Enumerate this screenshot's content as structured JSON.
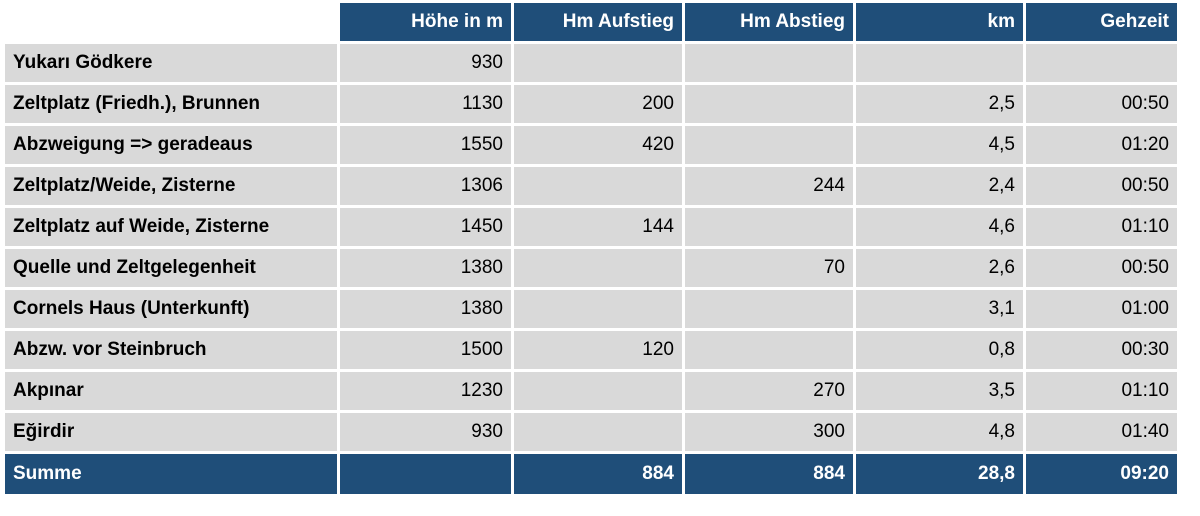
{
  "headers": [
    "",
    "Höhe in m",
    "Hm Aufstieg",
    "Hm Abstieg",
    "km",
    "Gehzeit"
  ],
  "rows": [
    [
      "Yukarı Gödkere",
      "930",
      "",
      "",
      "",
      ""
    ],
    [
      "Zeltplatz (Friedh.), Brunnen",
      "1130",
      "200",
      "",
      "2,5",
      "00:50"
    ],
    [
      "Abzweigung => geradeaus",
      "1550",
      "420",
      "",
      "4,5",
      "01:20"
    ],
    [
      "Zeltplatz/Weide, Zisterne",
      "1306",
      "",
      "244",
      "2,4",
      "00:50"
    ],
    [
      "Zeltplatz auf Weide, Zisterne",
      "1450",
      "144",
      "",
      "4,6",
      "01:10"
    ],
    [
      "Quelle und Zeltgelegenheit",
      "1380",
      "",
      "70",
      "2,6",
      "00:50"
    ],
    [
      "Cornels Haus (Unterkunft)",
      "1380",
      "",
      "",
      "3,1",
      "01:00"
    ],
    [
      "Abzw. vor Steinbruch",
      "1500",
      "120",
      "",
      "0,8",
      "00:30"
    ],
    [
      "Akpınar",
      "1230",
      "",
      "270",
      "3,5",
      "01:10"
    ],
    [
      "Eğirdir",
      "930",
      "",
      "300",
      "4,8",
      "01:40"
    ]
  ],
  "total": [
    "Summe",
    "",
    "884",
    "884",
    "28,8",
    "09:20"
  ],
  "colors": {
    "header_bg": "#1f4e79",
    "cell_bg": "#d9d9d9"
  }
}
